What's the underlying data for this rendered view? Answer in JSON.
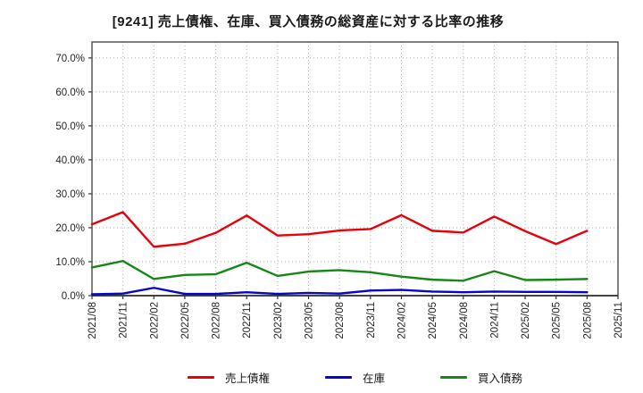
{
  "chart_data": {
    "type": "line",
    "title": "[9241]  売上債権、在庫、買入債務の総資産に対する比率の推移",
    "categories": [
      "2021/08",
      "2021/11",
      "2022/02",
      "2022/05",
      "2022/08",
      "2022/11",
      "2023/02",
      "2023/05",
      "2023/08",
      "2023/11",
      "2024/02",
      "2024/05",
      "2024/08",
      "2024/11",
      "2025/02",
      "2025/05",
      "2025/08",
      "2025/11"
    ],
    "series": [
      {
        "name": "売上債権",
        "color": "#e8000b",
        "values": [
          21.0,
          24.6,
          14.4,
          15.3,
          18.5,
          23.6,
          17.7,
          18.1,
          19.2,
          19.6,
          23.7,
          19.1,
          18.6,
          23.3,
          19.0,
          15.2,
          19.1,
          null
        ]
      },
      {
        "name": "在庫",
        "color": "#0505cd",
        "values": [
          0.4,
          0.6,
          2.3,
          0.5,
          0.5,
          1.0,
          0.5,
          0.8,
          0.6,
          1.5,
          1.7,
          1.2,
          1.0,
          1.2,
          1.1,
          1.1,
          1.0,
          null
        ]
      },
      {
        "name": "買入債務",
        "color": "#178717",
        "values": [
          8.3,
          10.2,
          4.9,
          6.1,
          6.3,
          9.7,
          5.8,
          7.1,
          7.5,
          6.9,
          5.6,
          4.7,
          4.4,
          7.2,
          4.6,
          4.7,
          4.9,
          null
        ]
      }
    ],
    "ylim": [
      0,
      74.7
    ],
    "yticks": [
      {
        "v": 0,
        "label": "0.0%"
      },
      {
        "v": 10,
        "label": "10.0%"
      },
      {
        "v": 20,
        "label": "20.0%"
      },
      {
        "v": 30,
        "label": "30.0%"
      },
      {
        "v": 40,
        "label": "40.0%"
      },
      {
        "v": 50,
        "label": "50.0%"
      },
      {
        "v": 60,
        "label": "60.0%"
      },
      {
        "v": 70,
        "label": "70.0%"
      }
    ],
    "grid": true,
    "x_tick_rotation": 90,
    "legend_position": "bottom-center"
  }
}
